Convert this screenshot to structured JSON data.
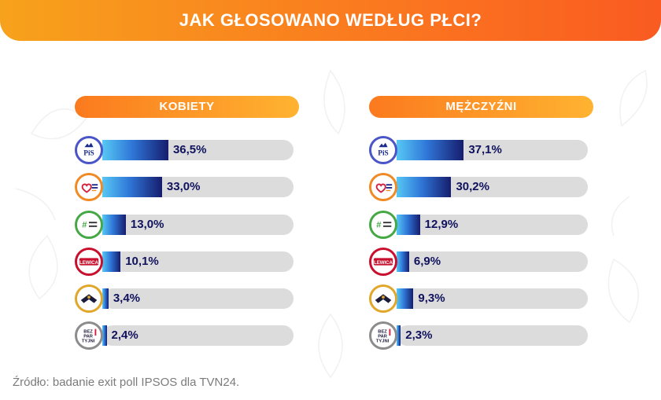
{
  "header": {
    "title": "JAK GŁOSOWANO WEDŁUG PŁCI?"
  },
  "colors": {
    "banner_start": "#f7a21c",
    "banner_end": "#f95b21",
    "bar_light": "#57c8f4",
    "bar_dark": "#161d6e",
    "track": "#dcdcdc",
    "value_text": "#10125e"
  },
  "parties": [
    {
      "icon": "pis-logo-icon",
      "ring": "#4a55c8"
    },
    {
      "icon": "koalicja-obywatelska-logo-icon",
      "ring": "#f08a24"
    },
    {
      "icon": "trzecia-droga-logo-icon",
      "ring": "#45a845"
    },
    {
      "icon": "lewica-logo-icon",
      "ring": "#c8102e",
      "text": "LEWICA"
    },
    {
      "icon": "konfederacja-logo-icon",
      "ring": "#e0a72a"
    },
    {
      "icon": "bezpartyjni-logo-icon",
      "ring": "#8c8c8c",
      "text": [
        "BEZ",
        "PAR",
        "TYJNI"
      ]
    }
  ],
  "chart_data": [
    {
      "type": "bar",
      "title": "KOBIETY",
      "orientation": "horizontal",
      "xlim": [
        0,
        100
      ],
      "values": [
        36.5,
        33.0,
        13.0,
        10.1,
        3.4,
        2.4
      ],
      "labels": [
        "36,5%",
        "33,0%",
        "13,0%",
        "10,1%",
        "3,4%",
        "2,4%"
      ]
    },
    {
      "type": "bar",
      "title": "MĘŻCZYŹNI",
      "orientation": "horizontal",
      "xlim": [
        0,
        100
      ],
      "values": [
        37.1,
        30.2,
        12.9,
        6.9,
        9.3,
        2.3
      ],
      "labels": [
        "37,1%",
        "30,2%",
        "12,9%",
        "6,9%",
        "9,3%",
        "2,3%"
      ]
    }
  ],
  "footer": {
    "source": "Źródło: badanie exit poll IPSOS dla TVN24."
  }
}
